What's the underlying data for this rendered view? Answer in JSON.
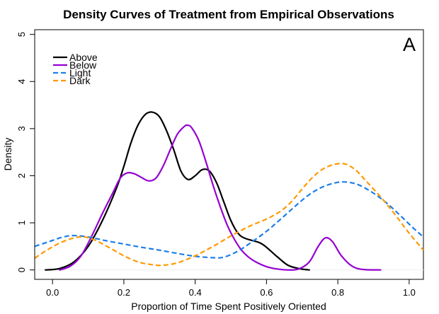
{
  "chart_data": {
    "type": "line",
    "title": "Density Curves of Treatment from Empirical Observations",
    "xlabel": "Proportion of Time Spent Positively Oriented",
    "ylabel": "Density",
    "panel_label": "A",
    "xlim": [
      -0.05,
      1.04
    ],
    "ylim": [
      -0.2,
      5.1
    ],
    "x_ticks": [
      0.0,
      0.2,
      0.4,
      0.6,
      0.8,
      1.0
    ],
    "x_tick_labels": [
      "0.0",
      "0.2",
      "0.4",
      "0.6",
      "0.8",
      "1.0"
    ],
    "y_ticks": [
      0,
      1,
      2,
      3,
      4,
      5
    ],
    "y_tick_labels": [
      "0",
      "1",
      "2",
      "3",
      "4",
      "5"
    ],
    "grid": false,
    "legend": {
      "position": "top-left"
    },
    "series": [
      {
        "name": "Above",
        "color": "#000000",
        "dash": "solid",
        "points": [
          [
            -0.02,
            0.0
          ],
          [
            0.02,
            0.03
          ],
          [
            0.06,
            0.17
          ],
          [
            0.1,
            0.5
          ],
          [
            0.14,
            1.05
          ],
          [
            0.18,
            1.75
          ],
          [
            0.2,
            2.2
          ],
          [
            0.22,
            2.7
          ],
          [
            0.24,
            3.08
          ],
          [
            0.26,
            3.3
          ],
          [
            0.28,
            3.35
          ],
          [
            0.3,
            3.25
          ],
          [
            0.32,
            2.95
          ],
          [
            0.34,
            2.55
          ],
          [
            0.36,
            2.1
          ],
          [
            0.38,
            1.92
          ],
          [
            0.4,
            2.0
          ],
          [
            0.42,
            2.13
          ],
          [
            0.44,
            2.1
          ],
          [
            0.46,
            1.85
          ],
          [
            0.48,
            1.45
          ],
          [
            0.5,
            1.05
          ],
          [
            0.52,
            0.78
          ],
          [
            0.54,
            0.67
          ],
          [
            0.58,
            0.58
          ],
          [
            0.6,
            0.48
          ],
          [
            0.63,
            0.28
          ],
          [
            0.66,
            0.1
          ],
          [
            0.69,
            0.03
          ],
          [
            0.72,
            0.0
          ]
        ]
      },
      {
        "name": "Below",
        "color": "#9400d3",
        "dash": "solid",
        "points": [
          [
            0.02,
            0.0
          ],
          [
            0.05,
            0.08
          ],
          [
            0.08,
            0.3
          ],
          [
            0.11,
            0.72
          ],
          [
            0.14,
            1.2
          ],
          [
            0.17,
            1.65
          ],
          [
            0.19,
            1.95
          ],
          [
            0.21,
            2.06
          ],
          [
            0.23,
            2.04
          ],
          [
            0.25,
            1.96
          ],
          [
            0.27,
            1.89
          ],
          [
            0.29,
            1.95
          ],
          [
            0.31,
            2.2
          ],
          [
            0.33,
            2.55
          ],
          [
            0.35,
            2.88
          ],
          [
            0.37,
            3.05
          ],
          [
            0.38,
            3.07
          ],
          [
            0.39,
            3.02
          ],
          [
            0.41,
            2.75
          ],
          [
            0.43,
            2.3
          ],
          [
            0.45,
            1.8
          ],
          [
            0.47,
            1.35
          ],
          [
            0.49,
            0.95
          ],
          [
            0.51,
            0.65
          ],
          [
            0.53,
            0.42
          ],
          [
            0.55,
            0.27
          ],
          [
            0.57,
            0.17
          ],
          [
            0.6,
            0.07
          ],
          [
            0.63,
            0.02
          ],
          [
            0.66,
            0.0
          ],
          [
            0.69,
            0.02
          ],
          [
            0.72,
            0.17
          ],
          [
            0.745,
            0.5
          ],
          [
            0.765,
            0.68
          ],
          [
            0.785,
            0.6
          ],
          [
            0.81,
            0.3
          ],
          [
            0.84,
            0.08
          ],
          [
            0.87,
            0.01
          ],
          [
            0.92,
            0.0
          ]
        ]
      },
      {
        "name": "Light",
        "color": "#1e7ee8",
        "dash": "dashed",
        "points": [
          [
            -0.05,
            0.5
          ],
          [
            -0.01,
            0.6
          ],
          [
            0.03,
            0.7
          ],
          [
            0.06,
            0.73
          ],
          [
            0.1,
            0.7
          ],
          [
            0.15,
            0.62
          ],
          [
            0.2,
            0.55
          ],
          [
            0.25,
            0.48
          ],
          [
            0.3,
            0.42
          ],
          [
            0.35,
            0.35
          ],
          [
            0.4,
            0.29
          ],
          [
            0.45,
            0.26
          ],
          [
            0.48,
            0.27
          ],
          [
            0.52,
            0.4
          ],
          [
            0.56,
            0.6
          ],
          [
            0.6,
            0.82
          ],
          [
            0.64,
            1.08
          ],
          [
            0.68,
            1.35
          ],
          [
            0.72,
            1.6
          ],
          [
            0.76,
            1.77
          ],
          [
            0.8,
            1.86
          ],
          [
            0.83,
            1.86
          ],
          [
            0.86,
            1.8
          ],
          [
            0.9,
            1.63
          ],
          [
            0.94,
            1.4
          ],
          [
            0.98,
            1.12
          ],
          [
            1.01,
            0.9
          ],
          [
            1.04,
            0.7
          ]
        ]
      },
      {
        "name": "Dark",
        "color": "#ff9900",
        "dash": "dashed",
        "points": [
          [
            -0.05,
            0.25
          ],
          [
            -0.02,
            0.4
          ],
          [
            0.02,
            0.57
          ],
          [
            0.06,
            0.68
          ],
          [
            0.09,
            0.7
          ],
          [
            0.12,
            0.63
          ],
          [
            0.16,
            0.47
          ],
          [
            0.2,
            0.3
          ],
          [
            0.24,
            0.17
          ],
          [
            0.28,
            0.11
          ],
          [
            0.31,
            0.1
          ],
          [
            0.35,
            0.15
          ],
          [
            0.4,
            0.3
          ],
          [
            0.45,
            0.5
          ],
          [
            0.5,
            0.72
          ],
          [
            0.55,
            0.92
          ],
          [
            0.6,
            1.08
          ],
          [
            0.64,
            1.25
          ],
          [
            0.67,
            1.45
          ],
          [
            0.7,
            1.72
          ],
          [
            0.73,
            1.97
          ],
          [
            0.76,
            2.15
          ],
          [
            0.79,
            2.24
          ],
          [
            0.82,
            2.25
          ],
          [
            0.85,
            2.12
          ],
          [
            0.88,
            1.88
          ],
          [
            0.92,
            1.55
          ],
          [
            0.96,
            1.18
          ],
          [
            1.0,
            0.78
          ],
          [
            1.04,
            0.42
          ]
        ]
      }
    ]
  }
}
